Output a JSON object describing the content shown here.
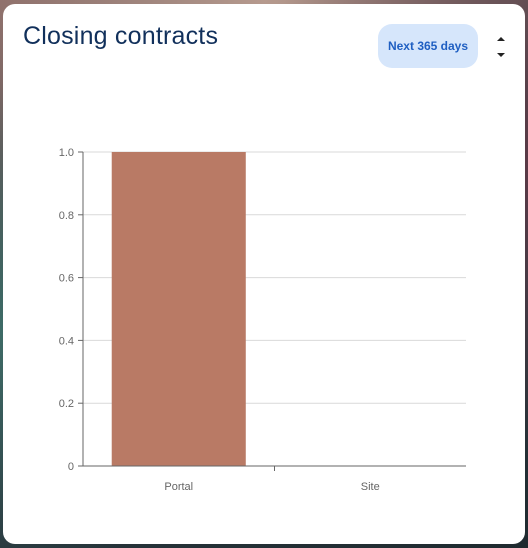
{
  "card": {
    "title": "Closing contracts",
    "range_button": "Next 365 days",
    "sort_icon": "sort-updown-icon"
  },
  "colors": {
    "bar": "#b97a65",
    "title": "#11305b",
    "button_bg": "#d6e6fb",
    "button_text": "#1f5fc2",
    "grid": "#d9d9d9",
    "axis": "#666666"
  },
  "chart_data": {
    "type": "bar",
    "categories": [
      "Portal",
      "Site"
    ],
    "values": [
      1,
      0
    ],
    "ylim": [
      0,
      1
    ],
    "yticks": [
      "0",
      "0.2",
      "0.4",
      "0.6",
      "0.8",
      "1.0"
    ],
    "grid": true,
    "title": "",
    "xlabel": "",
    "ylabel": ""
  }
}
